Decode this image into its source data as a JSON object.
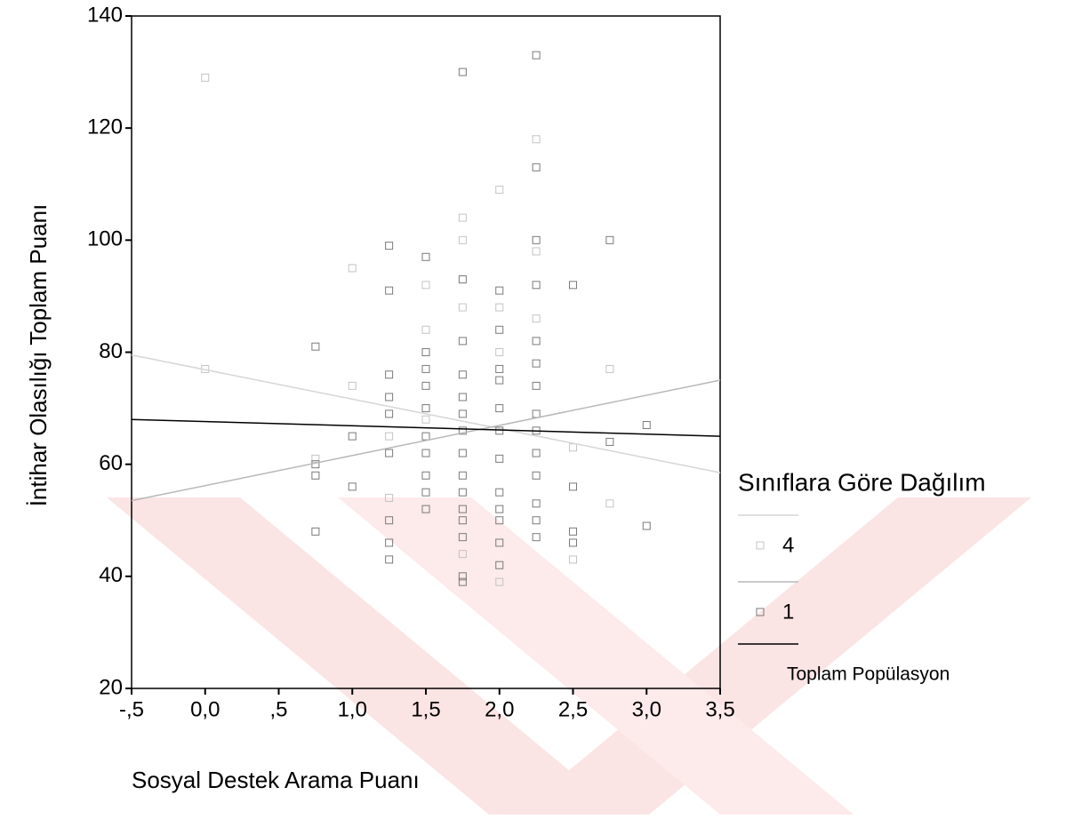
{
  "chart_data": {
    "type": "scatter",
    "xlabel": "Sosyal Destek Arama Puanı",
    "ylabel": "İntihar Olasılığı Toplam Puanı",
    "legend_title": "Sınıflara  Göre Dağılım",
    "xlim": [
      -0.5,
      3.5
    ],
    "xticks": [
      {
        "value": -0.5,
        "label": "-,5"
      },
      {
        "value": 0,
        "label": "0,0"
      },
      {
        "value": 0.5,
        "label": ",5"
      },
      {
        "value": 1,
        "label": "1,0"
      },
      {
        "value": 1.5,
        "label": "1,5"
      },
      {
        "value": 2,
        "label": "2,0"
      },
      {
        "value": 2.5,
        "label": "2,5"
      },
      {
        "value": 3,
        "label": "3,0"
      },
      {
        "value": 3.5,
        "label": "3,5"
      }
    ],
    "ylim": [
      20,
      140
    ],
    "yticks": [
      20,
      40,
      60,
      80,
      100,
      120,
      140
    ],
    "fit_x": [
      -0.5,
      3.5
    ],
    "series": [
      {
        "name": "4",
        "color": "#c4c4c4",
        "line_color": "#d6d6d6",
        "fit": [
          79.5,
          58.5
        ],
        "x": [
          0,
          0,
          0.75,
          1,
          1,
          1.25,
          1.25,
          1.5,
          1.5,
          1.5,
          1.75,
          1.75,
          1.75,
          1.75,
          2,
          2,
          2,
          2,
          2.25,
          2.25,
          2.25,
          2.5,
          2.5,
          2.75,
          2.75
        ],
        "values": [
          129,
          77,
          61,
          95,
          74,
          54,
          65,
          92,
          84,
          68,
          104,
          100,
          88,
          44,
          109,
          88,
          80,
          39,
          118,
          86,
          98,
          63,
          43,
          77,
          53
        ]
      },
      {
        "name": "1",
        "color": "#7a7a7a",
        "line_color": "#b8b8b8",
        "fit": [
          53.5,
          75
        ],
        "x": [
          0.75,
          0.75,
          0.75,
          0.75,
          1,
          1,
          1.25,
          1.25,
          1.25,
          1.25,
          1.25,
          1.25,
          1.25,
          1.25,
          1.25,
          1.5,
          1.5,
          1.5,
          1.5,
          1.5,
          1.5,
          1.5,
          1.5,
          1.5,
          1.5,
          1.75,
          1.75,
          1.75,
          1.75,
          1.75,
          1.75,
          1.75,
          1.75,
          1.75,
          1.75,
          1.75,
          1.75,
          1.75,
          1.75,
          1.75,
          2,
          2,
          2,
          2,
          2,
          2,
          2,
          2,
          2,
          2,
          2,
          2,
          2.25,
          2.25,
          2.25,
          2.25,
          2.25,
          2.25,
          2.25,
          2.25,
          2.25,
          2.25,
          2.25,
          2.25,
          2.25,
          2.25,
          2.5,
          2.5,
          2.5,
          2.5,
          2.75,
          2.75,
          3,
          3
        ],
        "values": [
          81,
          48,
          60,
          58,
          65,
          56,
          99,
          91,
          76,
          72,
          69,
          62,
          50,
          46,
          43,
          97,
          80,
          77,
          74,
          70,
          65,
          62,
          58,
          55,
          52,
          130,
          93,
          82,
          76,
          72,
          69,
          66,
          62,
          58,
          55,
          52,
          50,
          47,
          40,
          39,
          91,
          84,
          77,
          75,
          70,
          66,
          61,
          55,
          52,
          50,
          46,
          42,
          133,
          113,
          100,
          92,
          82,
          78,
          74,
          69,
          66,
          62,
          58,
          53,
          50,
          47,
          92,
          56,
          48,
          46,
          100,
          64,
          67,
          49
        ]
      }
    ],
    "total_line": {
      "name": "Toplam Popülasyon",
      "color": "#000000",
      "values": [
        68,
        65
      ]
    }
  }
}
